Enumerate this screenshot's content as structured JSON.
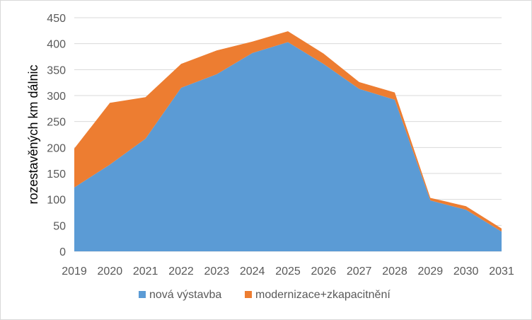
{
  "chart_data": {
    "type": "area",
    "stacked": true,
    "title": "",
    "xlabel": "",
    "ylabel": "rozestavěných km dálnic",
    "ylim": [
      0,
      450
    ],
    "yticks": [
      "0",
      "50",
      "100",
      "150",
      "200",
      "250",
      "300",
      "350",
      "400",
      "450"
    ],
    "categories": [
      "2019",
      "2020",
      "2021",
      "2022",
      "2023",
      "2024",
      "2025",
      "2026",
      "2027",
      "2028",
      "2029",
      "2030",
      "2031"
    ],
    "grid": true,
    "legend_position": "bottom",
    "series": [
      {
        "name": "nová výstavba",
        "color": "#5b9bd5",
        "values": [
          123,
          167,
          217,
          315,
          341,
          382,
          403,
          361,
          313,
          292,
          98,
          80,
          38
        ]
      },
      {
        "name": "modernizace+zkapacitnění",
        "color": "#ed7d31",
        "values": [
          75,
          119,
          80,
          46,
          46,
          22,
          21,
          20,
          13,
          14,
          5,
          7,
          6
        ]
      }
    ]
  }
}
